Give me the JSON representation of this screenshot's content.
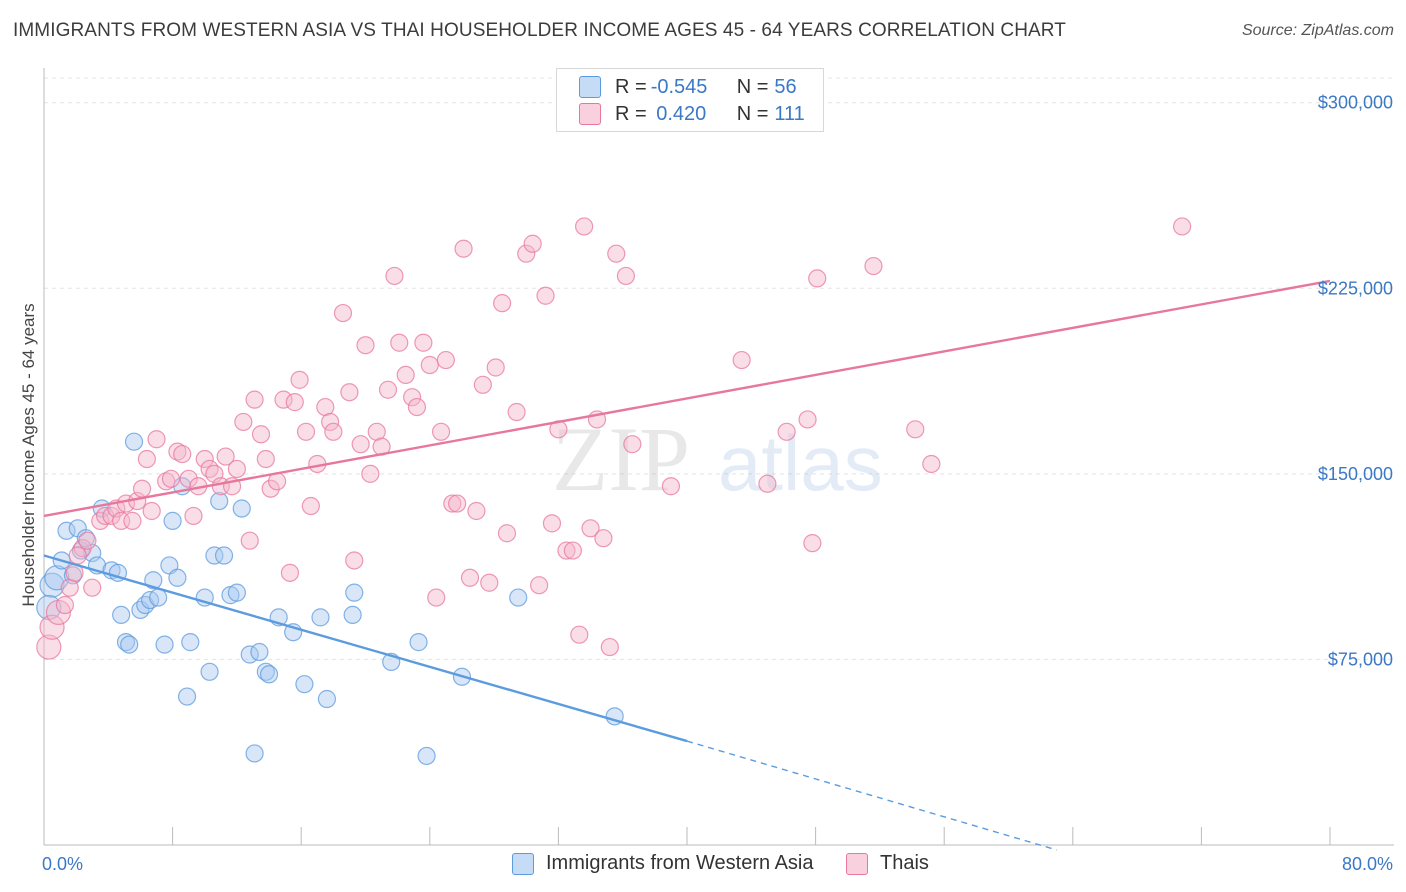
{
  "title": "IMMIGRANTS FROM WESTERN ASIA VS THAI HOUSEHOLDER INCOME AGES 45 - 64 YEARS CORRELATION CHART",
  "source": "Source: ZipAtlas.com",
  "watermark": {
    "zip": "ZIP",
    "atlas": "atlas"
  },
  "legend": {
    "rows": [
      {
        "r_label": "R = ",
        "r_value": "-0.545",
        "n_label": "N = ",
        "n_value": "56",
        "color": "#a8c8f0"
      },
      {
        "r_label": "R = ",
        "r_value": " 0.420",
        "n_label": "N = ",
        "n_value": "111",
        "color": "#f5b6ca"
      }
    ]
  },
  "bottom_legend": [
    {
      "label": "Immigrants from Western Asia",
      "color": "#a8c8f0"
    },
    {
      "label": "Thais",
      "color": "#f5b6ca"
    }
  ],
  "chart_data": {
    "type": "scatter",
    "title": "IMMIGRANTS FROM WESTERN ASIA VS THAI HOUSEHOLDER INCOME AGES 45 - 64 YEARS CORRELATION CHART",
    "xlabel": "",
    "ylabel": "Householder Income Ages 45 - 64 years",
    "xlim": [
      0,
      80
    ],
    "ylim": [
      0,
      310000
    ],
    "x_tick_labels": [
      "0.0%",
      "80.0%"
    ],
    "y_ticks": [
      75000,
      150000,
      225000,
      300000
    ],
    "y_tick_labels": [
      "$75,000",
      "$150,000",
      "$225,000",
      "$300,000"
    ],
    "grid": true,
    "series": [
      {
        "name": "Immigrants from Western Asia",
        "color": "#5b9bdf",
        "fill": "#a8c8f0",
        "points": [
          [
            0.5,
            105000
          ],
          [
            0.8,
            108000
          ],
          [
            1.1,
            115000
          ],
          [
            1.4,
            127000
          ],
          [
            1.8,
            109000
          ],
          [
            2.1,
            128000
          ],
          [
            2.3,
            119000
          ],
          [
            2.6,
            124000
          ],
          [
            3.0,
            118000
          ],
          [
            3.3,
            113000
          ],
          [
            3.6,
            136000
          ],
          [
            4.2,
            111000
          ],
          [
            4.6,
            110000
          ],
          [
            4.8,
            93000
          ],
          [
            5.1,
            82000
          ],
          [
            5.3,
            81000
          ],
          [
            5.6,
            163000
          ],
          [
            6.0,
            95000
          ],
          [
            6.3,
            97000
          ],
          [
            6.6,
            99000
          ],
          [
            6.8,
            107000
          ],
          [
            7.1,
            100000
          ],
          [
            7.5,
            81000
          ],
          [
            7.8,
            113000
          ],
          [
            8.0,
            131000
          ],
          [
            8.3,
            108000
          ],
          [
            8.6,
            145000
          ],
          [
            8.9,
            60000
          ],
          [
            9.1,
            82000
          ],
          [
            10.0,
            100000
          ],
          [
            10.3,
            70000
          ],
          [
            10.6,
            117000
          ],
          [
            10.9,
            139000
          ],
          [
            11.2,
            117000
          ],
          [
            11.6,
            101000
          ],
          [
            12.0,
            102000
          ],
          [
            12.3,
            136000
          ],
          [
            12.8,
            77000
          ],
          [
            13.1,
            37000
          ],
          [
            13.4,
            78000
          ],
          [
            13.8,
            70000
          ],
          [
            14.0,
            69000
          ],
          [
            14.6,
            92000
          ],
          [
            15.5,
            86000
          ],
          [
            16.2,
            65000
          ],
          [
            17.2,
            92000
          ],
          [
            17.6,
            59000
          ],
          [
            19.2,
            93000
          ],
          [
            19.3,
            102000
          ],
          [
            21.6,
            74000
          ],
          [
            23.3,
            82000
          ],
          [
            23.8,
            36000
          ],
          [
            26.0,
            68000
          ],
          [
            29.5,
            100000
          ],
          [
            35.5,
            52000
          ],
          [
            0.3,
            96000
          ]
        ],
        "trend": {
          "x": [
            0,
            40,
            63
          ],
          "y": [
            117000,
            42000,
            -2000
          ],
          "solid_until_x": 40
        }
      },
      {
        "name": "Thais",
        "color": "#e8779d",
        "fill": "#f5b6ca",
        "points": [
          [
            0.3,
            80000
          ],
          [
            0.5,
            88000
          ],
          [
            0.9,
            94000
          ],
          [
            1.3,
            97000
          ],
          [
            1.6,
            104000
          ],
          [
            1.9,
            110000
          ],
          [
            2.4,
            120000
          ],
          [
            2.7,
            123000
          ],
          [
            3.0,
            104000
          ],
          [
            3.5,
            131000
          ],
          [
            3.8,
            133000
          ],
          [
            4.2,
            133000
          ],
          [
            4.5,
            136000
          ],
          [
            4.8,
            131000
          ],
          [
            5.1,
            138000
          ],
          [
            5.5,
            131000
          ],
          [
            5.8,
            139000
          ],
          [
            6.1,
            144000
          ],
          [
            6.4,
            156000
          ],
          [
            6.7,
            135000
          ],
          [
            7.0,
            164000
          ],
          [
            7.6,
            147000
          ],
          [
            7.9,
            148000
          ],
          [
            8.3,
            159000
          ],
          [
            8.6,
            158000
          ],
          [
            9.0,
            148000
          ],
          [
            9.3,
            133000
          ],
          [
            9.6,
            145000
          ],
          [
            10.0,
            156000
          ],
          [
            10.3,
            152000
          ],
          [
            10.6,
            150000
          ],
          [
            11.0,
            145000
          ],
          [
            11.3,
            157000
          ],
          [
            11.7,
            145000
          ],
          [
            12.0,
            152000
          ],
          [
            12.4,
            171000
          ],
          [
            12.8,
            123000
          ],
          [
            13.1,
            180000
          ],
          [
            13.5,
            166000
          ],
          [
            13.8,
            156000
          ],
          [
            14.1,
            144000
          ],
          [
            14.5,
            147000
          ],
          [
            14.9,
            180000
          ],
          [
            15.3,
            110000
          ],
          [
            15.6,
            179000
          ],
          [
            15.9,
            188000
          ],
          [
            16.3,
            167000
          ],
          [
            16.6,
            137000
          ],
          [
            17.0,
            154000
          ],
          [
            17.5,
            177000
          ],
          [
            17.8,
            171000
          ],
          [
            18.0,
            167000
          ],
          [
            18.6,
            215000
          ],
          [
            19.0,
            183000
          ],
          [
            19.3,
            115000
          ],
          [
            19.7,
            162000
          ],
          [
            20.0,
            202000
          ],
          [
            20.3,
            150000
          ],
          [
            20.7,
            167000
          ],
          [
            21.0,
            161000
          ],
          [
            21.4,
            184000
          ],
          [
            21.8,
            230000
          ],
          [
            22.1,
            203000
          ],
          [
            22.5,
            190000
          ],
          [
            22.9,
            181000
          ],
          [
            23.2,
            177000
          ],
          [
            23.6,
            203000
          ],
          [
            24.0,
            194000
          ],
          [
            24.4,
            100000
          ],
          [
            24.7,
            167000
          ],
          [
            25.0,
            196000
          ],
          [
            25.4,
            138000
          ],
          [
            25.7,
            138000
          ],
          [
            26.1,
            241000
          ],
          [
            26.5,
            108000
          ],
          [
            26.9,
            135000
          ],
          [
            27.3,
            186000
          ],
          [
            27.7,
            106000
          ],
          [
            28.1,
            193000
          ],
          [
            28.5,
            219000
          ],
          [
            28.8,
            126000
          ],
          [
            29.4,
            175000
          ],
          [
            30.0,
            239000
          ],
          [
            30.4,
            243000
          ],
          [
            30.8,
            105000
          ],
          [
            31.2,
            222000
          ],
          [
            31.6,
            130000
          ],
          [
            32.0,
            168000
          ],
          [
            32.5,
            119000
          ],
          [
            32.9,
            119000
          ],
          [
            33.3,
            85000
          ],
          [
            33.6,
            250000
          ],
          [
            34.0,
            128000
          ],
          [
            34.4,
            172000
          ],
          [
            34.8,
            124000
          ],
          [
            35.2,
            80000
          ],
          [
            35.6,
            239000
          ],
          [
            36.2,
            230000
          ],
          [
            36.6,
            162000
          ],
          [
            39.0,
            145000
          ],
          [
            43.4,
            196000
          ],
          [
            45.0,
            146000
          ],
          [
            46.2,
            167000
          ],
          [
            47.5,
            172000
          ],
          [
            47.8,
            122000
          ],
          [
            48.1,
            229000
          ],
          [
            51.6,
            234000
          ],
          [
            54.2,
            168000
          ],
          [
            55.2,
            154000
          ],
          [
            70.8,
            250000
          ],
          [
            2.1,
            117000
          ]
        ],
        "trend": {
          "x": [
            0,
            80
          ],
          "y": [
            133000,
            228000
          ],
          "solid_until_x": 80
        }
      }
    ]
  }
}
